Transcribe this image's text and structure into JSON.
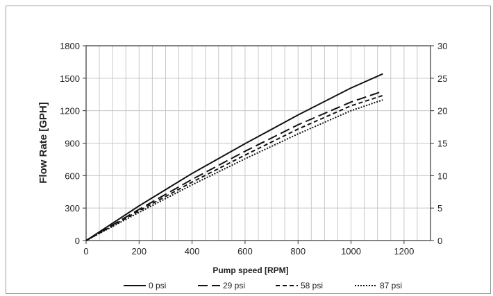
{
  "chart_data": {
    "type": "line",
    "title": "",
    "xlabel": "Pump speed [RPM]",
    "ylabel": "Flow Rate [GPH]",
    "xlim": [
      0,
      1300
    ],
    "ylim": [
      0,
      1800
    ],
    "y2lim": [
      0,
      30
    ],
    "x_ticks": [
      0,
      200,
      400,
      600,
      800,
      1000,
      1200
    ],
    "y_ticks": [
      0,
      300,
      600,
      900,
      1200,
      1500,
      1800
    ],
    "y2_ticks": [
      0,
      5,
      10,
      15,
      20,
      25,
      30
    ],
    "x_minor_step": 50,
    "grid": true,
    "legend_position": "bottom",
    "series": [
      {
        "name": "0 psi",
        "dash": "solid",
        "x": [
          0,
          200,
          400,
          600,
          800,
          1000,
          1120
        ],
        "y": [
          0,
          320,
          620,
          895,
          1160,
          1410,
          1540
        ]
      },
      {
        "name": "29 psi",
        "dash": "long-dash",
        "x": [
          0,
          200,
          400,
          600,
          800,
          1000,
          1120
        ],
        "y": [
          0,
          288,
          565,
          825,
          1070,
          1280,
          1380
        ]
      },
      {
        "name": "58 psi",
        "dash": "dash",
        "x": [
          0,
          200,
          400,
          600,
          800,
          1000,
          1120
        ],
        "y": [
          0,
          275,
          540,
          790,
          1030,
          1245,
          1340
        ]
      },
      {
        "name": "87 psi",
        "dash": "dot",
        "x": [
          0,
          200,
          400,
          600,
          800,
          1000,
          1120
        ],
        "y": [
          0,
          260,
          515,
          755,
          985,
          1200,
          1300
        ]
      }
    ]
  }
}
